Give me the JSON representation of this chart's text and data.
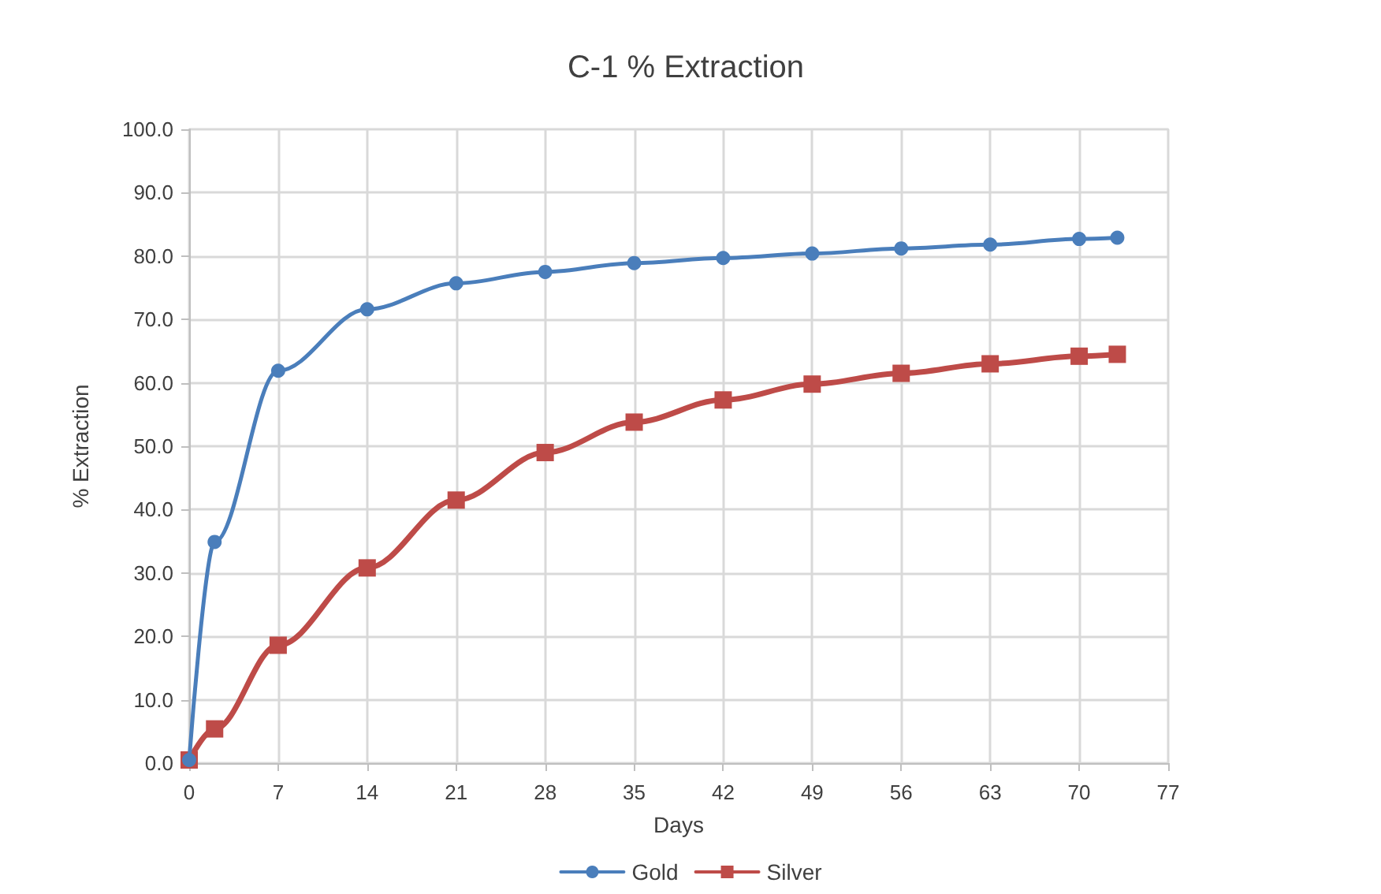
{
  "chart_data": {
    "type": "line",
    "title": "C-1 % Extraction",
    "xlabel": "Days",
    "ylabel": "% Extraction",
    "x": [
      0,
      2,
      7,
      14,
      21,
      28,
      35,
      42,
      49,
      56,
      63,
      70,
      73
    ],
    "series": [
      {
        "name": "Gold",
        "color": "#4a7ebb",
        "marker": "circle",
        "values": [
          0.5,
          34.9,
          61.9,
          71.6,
          75.7,
          77.5,
          78.9,
          79.7,
          80.4,
          81.2,
          81.8,
          82.7,
          82.9
        ]
      },
      {
        "name": "Silver",
        "color": "#be4b48",
        "marker": "square",
        "values": [
          0.5,
          5.4,
          18.6,
          30.8,
          41.5,
          49.0,
          53.8,
          57.3,
          59.8,
          61.5,
          63.0,
          64.2,
          64.5
        ]
      }
    ],
    "xlim": [
      0,
      77
    ],
    "xticks": [
      0,
      7,
      14,
      21,
      28,
      35,
      42,
      49,
      56,
      63,
      70,
      77
    ],
    "ylim": [
      0,
      100
    ],
    "yticks": [
      {
        "value": 0,
        "label": "0.0"
      },
      {
        "value": 10,
        "label": "10.0"
      },
      {
        "value": 20,
        "label": "20.0"
      },
      {
        "value": 30,
        "label": "30.0"
      },
      {
        "value": 40,
        "label": "40.0"
      },
      {
        "value": 50,
        "label": "50.0"
      },
      {
        "value": 60,
        "label": "60.0"
      },
      {
        "value": 70,
        "label": "70.0"
      },
      {
        "value": 80,
        "label": "80.0"
      },
      {
        "value": 90,
        "label": "90.0"
      },
      {
        "value": 100,
        "label": "100.0"
      }
    ],
    "grid": true,
    "legend": "bottom",
    "line_style": "solid"
  }
}
